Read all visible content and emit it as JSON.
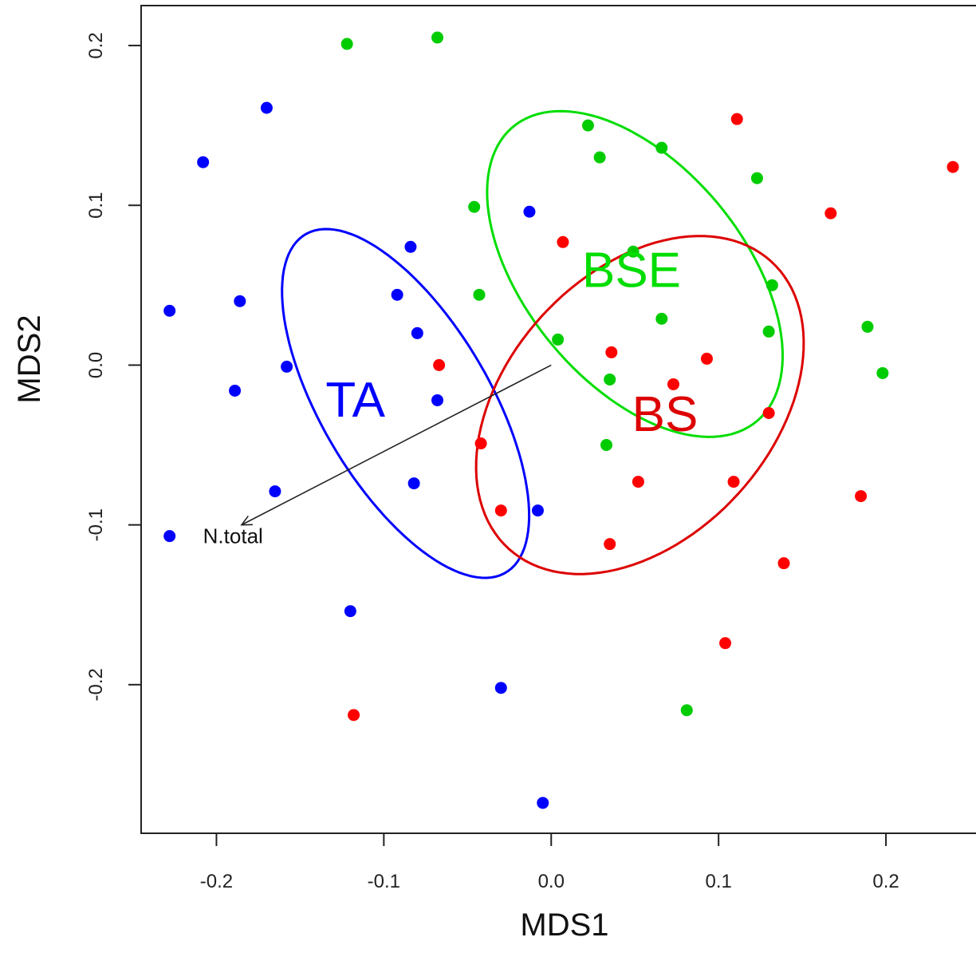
{
  "chart_data": {
    "type": "scatter",
    "title": "",
    "xlabel": "MDS1",
    "ylabel": "MDS2",
    "xlim": [
      -0.245,
      0.26
    ],
    "ylim": [
      -0.293,
      0.225
    ],
    "xticks": [
      -0.2,
      -0.1,
      0.0,
      0.1,
      0.2
    ],
    "yticks": [
      -0.2,
      -0.1,
      0.0,
      0.1,
      0.2
    ],
    "xtick_labels": [
      "-0.2",
      "-0.1",
      "0.0",
      "0.1",
      "0.2"
    ],
    "ytick_labels": [
      "-0.2",
      "-0.1",
      "0.0",
      "0.1",
      "0.2"
    ],
    "grid": false,
    "series": [
      {
        "name": "TA",
        "color": "#0000ff",
        "x": [
          -0.17,
          -0.208,
          -0.228,
          -0.186,
          -0.189,
          -0.158,
          -0.165,
          -0.084,
          -0.092,
          -0.08,
          -0.068,
          -0.082,
          -0.013,
          -0.008,
          -0.228,
          -0.12,
          -0.03,
          -0.005
        ],
        "y": [
          0.161,
          0.127,
          0.034,
          0.04,
          -0.016,
          -0.001,
          -0.079,
          0.074,
          0.044,
          0.02,
          -0.022,
          -0.074,
          0.096,
          -0.091,
          -0.107,
          -0.154,
          -0.202,
          -0.274
        ]
      },
      {
        "name": "BSE",
        "color": "#00cc00",
        "x": [
          -0.122,
          -0.068,
          0.022,
          0.029,
          0.066,
          0.123,
          -0.046,
          -0.043,
          0.049,
          0.132,
          0.066,
          0.13,
          0.004,
          0.035,
          0.033,
          0.189,
          0.198,
          0.081
        ],
        "y": [
          0.201,
          0.205,
          0.15,
          0.13,
          0.136,
          0.117,
          0.099,
          0.044,
          0.071,
          0.05,
          0.029,
          0.021,
          0.016,
          -0.009,
          -0.05,
          0.024,
          -0.005,
          -0.216
        ]
      },
      {
        "name": "BS",
        "color": "#ff0000",
        "x": [
          0.111,
          0.24,
          0.167,
          0.007,
          0.036,
          0.093,
          0.073,
          0.13,
          -0.067,
          -0.042,
          -0.03,
          0.052,
          0.109,
          0.185,
          0.035,
          0.139,
          0.104,
          -0.118
        ],
        "y": [
          0.154,
          0.124,
          0.095,
          0.077,
          0.008,
          0.004,
          -0.012,
          -0.03,
          0.0,
          -0.049,
          -0.091,
          -0.073,
          -0.073,
          -0.082,
          -0.112,
          -0.124,
          -0.174,
          -0.219
        ]
      }
    ],
    "ellipses": [
      {
        "group": "TA",
        "color": "#0000ff",
        "center": [
          -0.087,
          -0.024
        ],
        "semi_major": 0.1216,
        "semi_minor": 0.0508,
        "angle_deg": -61
      },
      {
        "group": "BSE",
        "color": "#00dd00",
        "center": [
          0.05,
          0.057
        ],
        "semi_major": 0.1175,
        "semi_minor": 0.0662,
        "angle_deg": -53
      },
      {
        "group": "BS",
        "color": "#dd0000",
        "center": [
          0.053,
          -0.025
        ],
        "semi_major": 0.1194,
        "semi_minor": 0.0807,
        "angle_deg": 51
      }
    ],
    "group_labels": [
      {
        "text": "TA",
        "color": "#0000ff",
        "x": -0.117,
        "y": -0.024
      },
      {
        "text": "BSE",
        "color": "#00dd00",
        "x": 0.048,
        "y": 0.057
      },
      {
        "text": "BS",
        "color": "#dd0000",
        "x": 0.068,
        "y": -0.033
      }
    ],
    "vector": {
      "label": "N.total",
      "from": [
        0.0,
        0.0
      ],
      "to": [
        -0.185,
        -0.1
      ],
      "label_x": -0.208,
      "label_y": -0.108
    }
  }
}
